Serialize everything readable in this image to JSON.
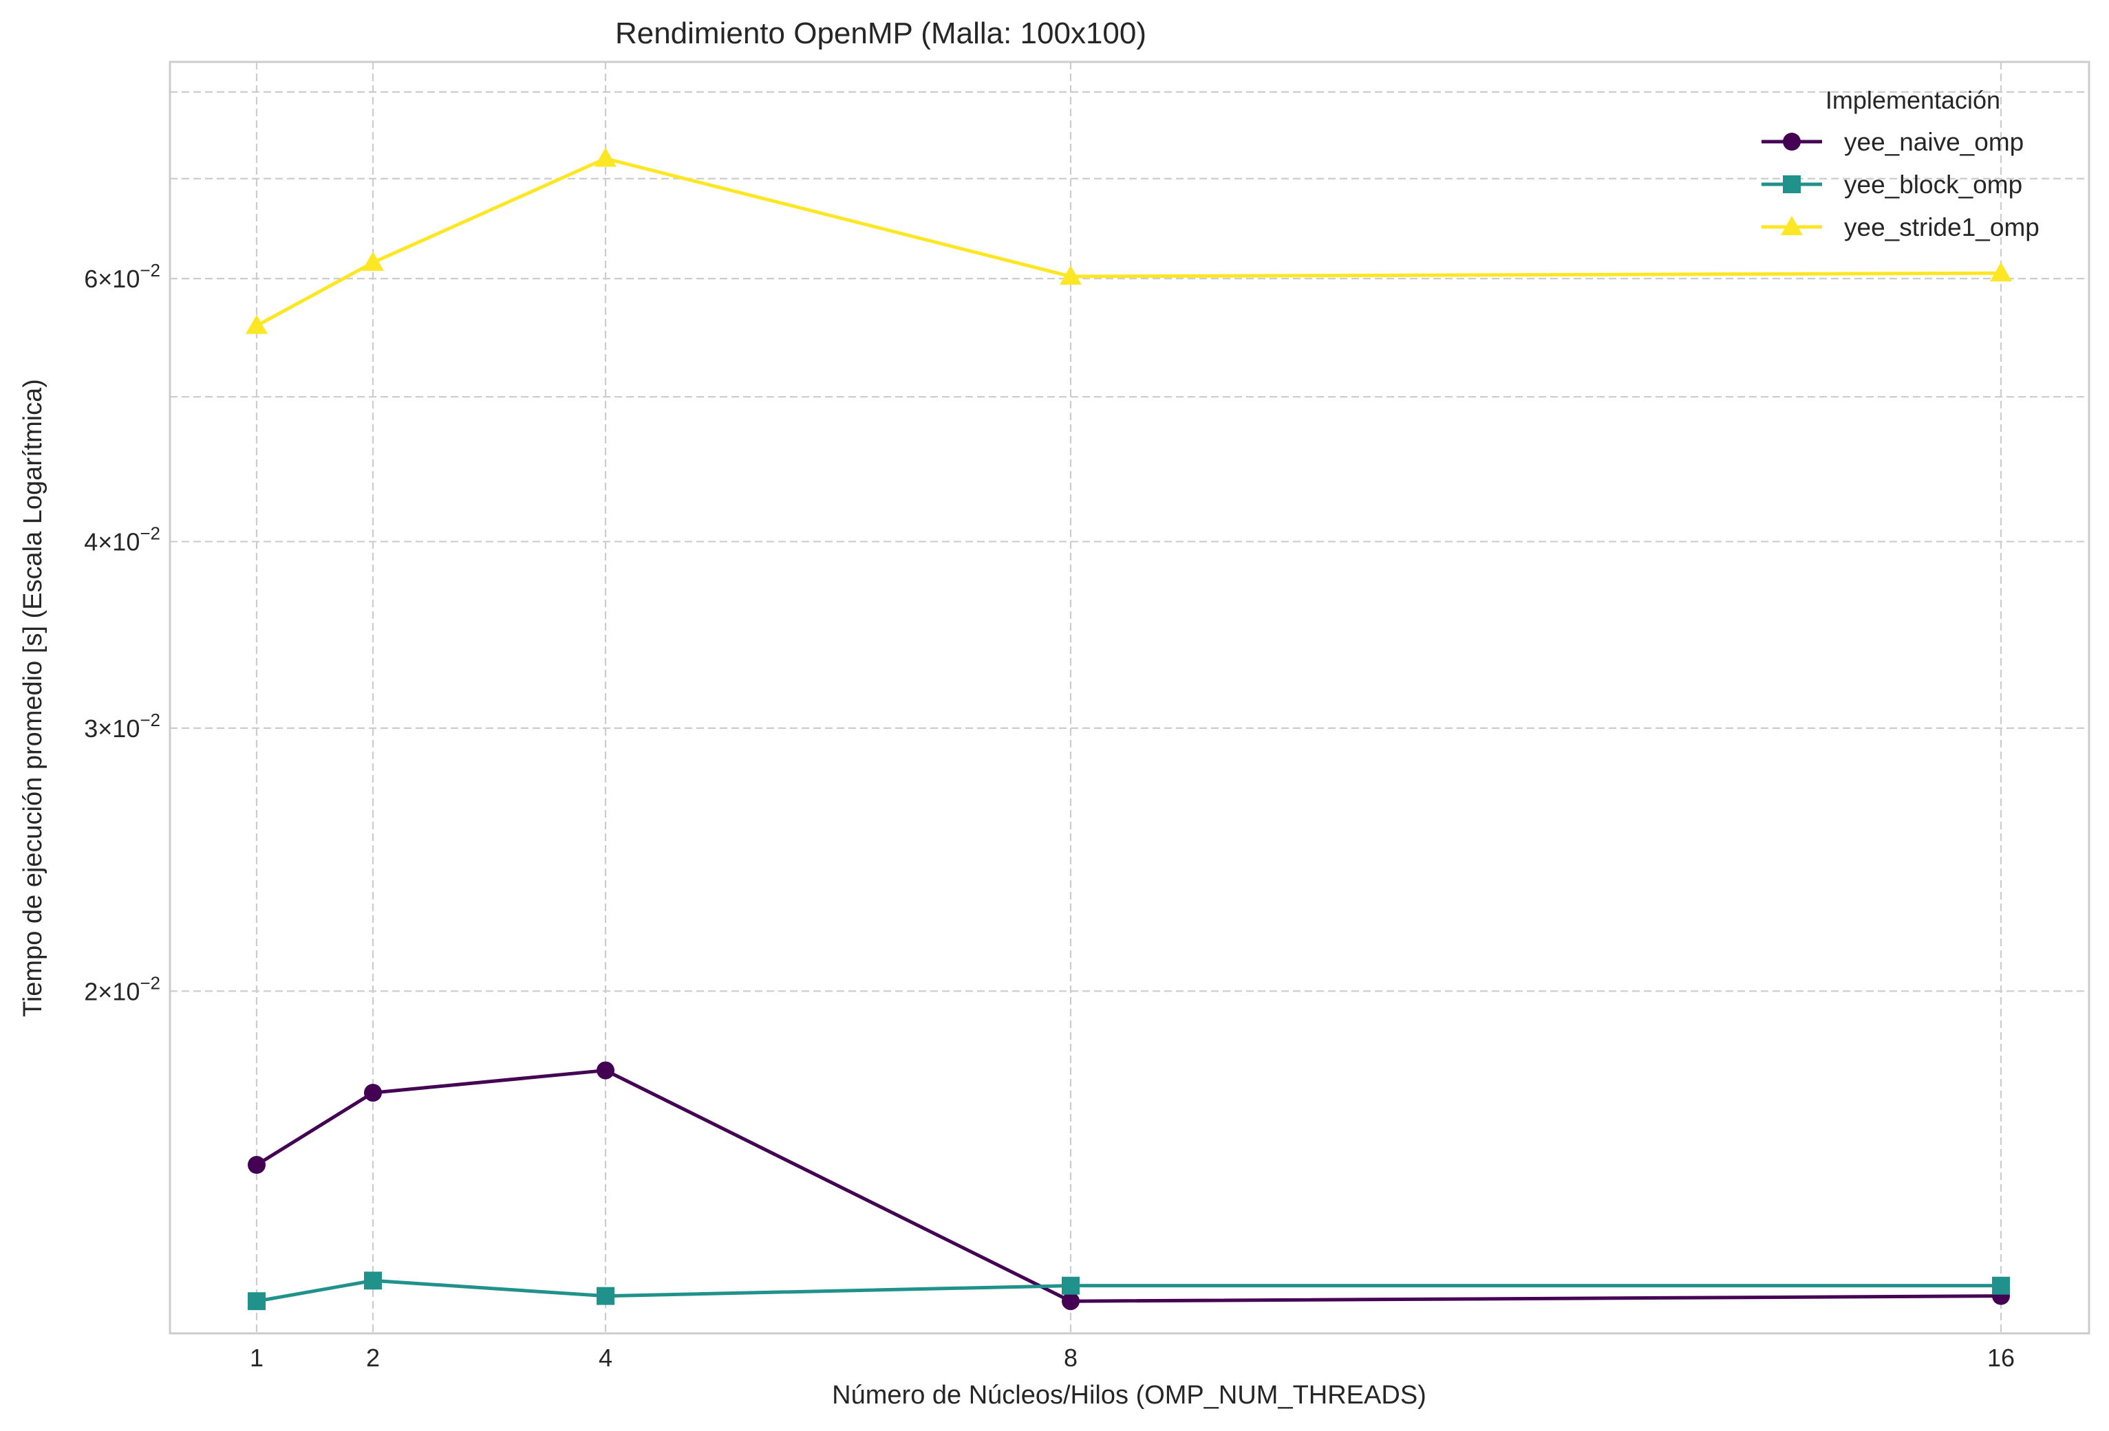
{
  "chart_data": {
    "type": "line",
    "title": "Rendimiento OpenMP (Malla: 100x100)",
    "xlabel": "Número de Núcleos/Hilos (OMP_NUM_THREADS)",
    "ylabel": "Tiempo de ejecución promedio [s] (Escala Logarítmica)",
    "x": [
      1,
      2,
      4,
      8,
      16
    ],
    "x_ticks": [
      "1",
      "2",
      "4",
      "8",
      "16"
    ],
    "yscale": "log",
    "ylim": [
      0.0118,
      0.0838
    ],
    "y_major_ticks": [
      {
        "value": 0.02,
        "mantissa": "2",
        "exponent": "−2"
      },
      {
        "value": 0.03,
        "mantissa": "3",
        "exponent": "−2"
      },
      {
        "value": 0.04,
        "mantissa": "4",
        "exponent": "−2"
      },
      {
        "value": 0.06,
        "mantissa": "6",
        "exponent": "−2"
      }
    ],
    "y_minor_gridlines": [
      0.05,
      0.07,
      0.08
    ],
    "tick_times_symbol": "×",
    "tick_base": "10",
    "grid": true,
    "legend": {
      "title": "Implementación",
      "placement": "top-right"
    },
    "series": [
      {
        "name": "yee_naive_omp",
        "color": "#440154",
        "marker": "circle",
        "values": [
          0.0153,
          0.0171,
          0.0177,
          0.0124,
          0.0125
        ]
      },
      {
        "name": "yee_block_omp",
        "color": "#21918c",
        "marker": "square",
        "values": [
          0.0124,
          0.0128,
          0.0125,
          0.0127,
          0.0127
        ]
      },
      {
        "name": "yee_stride1_omp",
        "color": "#fde725",
        "marker": "triangle",
        "values": [
          0.0558,
          0.0615,
          0.0722,
          0.0602,
          0.0605
        ]
      }
    ]
  }
}
